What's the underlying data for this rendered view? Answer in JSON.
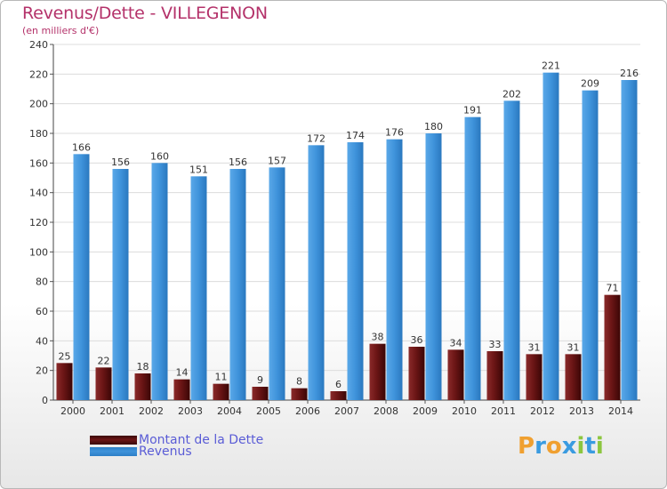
{
  "header": {
    "title": "Revenus/Dette - VILLEGENON",
    "subtitle": "(en milliers d'€)"
  },
  "colors": {
    "dette": "#6b1515",
    "revenus": "#3f93db",
    "title": "#b4326a",
    "legend_text": "#5a5cd6"
  },
  "legend": {
    "position": "bottom-left",
    "dette_label": "Montant de la Dette",
    "revenus_label": "Revenus"
  },
  "logo": {
    "text": "Proxiti",
    "letters": [
      {
        "ch": "P",
        "color": "#f0a030"
      },
      {
        "ch": "r",
        "color": "#3a9be0"
      },
      {
        "ch": "o",
        "color": "#f0a030"
      },
      {
        "ch": "x",
        "color": "#3a9be0"
      },
      {
        "ch": "i",
        "color": "#8cc63f"
      },
      {
        "ch": "t",
        "color": "#3a9be0"
      },
      {
        "ch": "i",
        "color": "#8cc63f"
      }
    ]
  },
  "chart_data": {
    "type": "bar",
    "title": "Revenus/Dette - VILLEGENON",
    "ylabel": "(en milliers d'€)",
    "categories": [
      "2000",
      "2001",
      "2002",
      "2003",
      "2004",
      "2005",
      "2006",
      "2007",
      "2008",
      "2009",
      "2010",
      "2011",
      "2012",
      "2013",
      "2014"
    ],
    "series": [
      {
        "name": "Montant de la Dette",
        "values": [
          25,
          22,
          18,
          14,
          11,
          9,
          8,
          6,
          38,
          36,
          34,
          33,
          31,
          31,
          71
        ]
      },
      {
        "name": "Revenus",
        "values": [
          166,
          156,
          160,
          151,
          156,
          157,
          172,
          174,
          176,
          180,
          191,
          202,
          221,
          209,
          216
        ]
      }
    ],
    "ylim": [
      0,
      240
    ],
    "yticks": [
      0,
      20,
      40,
      60,
      80,
      100,
      120,
      140,
      160,
      180,
      200,
      220,
      240
    ],
    "grid": true
  }
}
